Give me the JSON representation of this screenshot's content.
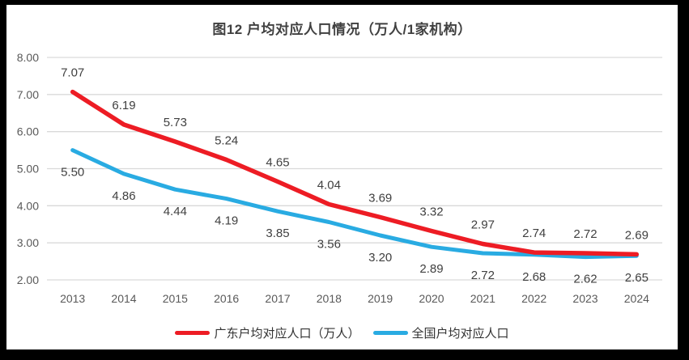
{
  "title": "图12 户均对应人口情况（万人/1家机构）",
  "frame": {
    "border_color": "#000000",
    "background_color": "#ffffff"
  },
  "chart_data": {
    "type": "line",
    "title": "图12 户均对应人口情况（万人/1家机构）",
    "categories": [
      "2013",
      "2014",
      "2015",
      "2016",
      "2017",
      "2018",
      "2019",
      "2020",
      "2021",
      "2022",
      "2023",
      "2024"
    ],
    "series": [
      {
        "id": "guangdong",
        "name": "广东户均对应人口（万人）",
        "color": "#ED1C24",
        "stroke_width": 5.5,
        "label_position": "above",
        "values": [
          7.07,
          6.19,
          5.73,
          5.24,
          4.65,
          4.04,
          3.69,
          3.32,
          2.97,
          2.74,
          2.72,
          2.69
        ]
      },
      {
        "id": "national",
        "name": "全国户均对应人口",
        "color": "#29ABE2",
        "stroke_width": 5,
        "label_position": "below",
        "values": [
          5.5,
          4.86,
          4.44,
          4.19,
          3.85,
          3.56,
          3.2,
          2.89,
          2.72,
          2.68,
          2.62,
          2.65
        ]
      }
    ],
    "xlabel": "",
    "ylabel": "",
    "ylim": [
      2.0,
      8.0
    ],
    "ytick_labels": [
      "2.00",
      "3.00",
      "4.00",
      "5.00",
      "6.00",
      "7.00",
      "8.00"
    ],
    "grid": true,
    "gridline_color": "#D9D9D9",
    "axis_tick_color": "#595959",
    "data_label_color": "#404040",
    "legend_position": "bottom"
  }
}
